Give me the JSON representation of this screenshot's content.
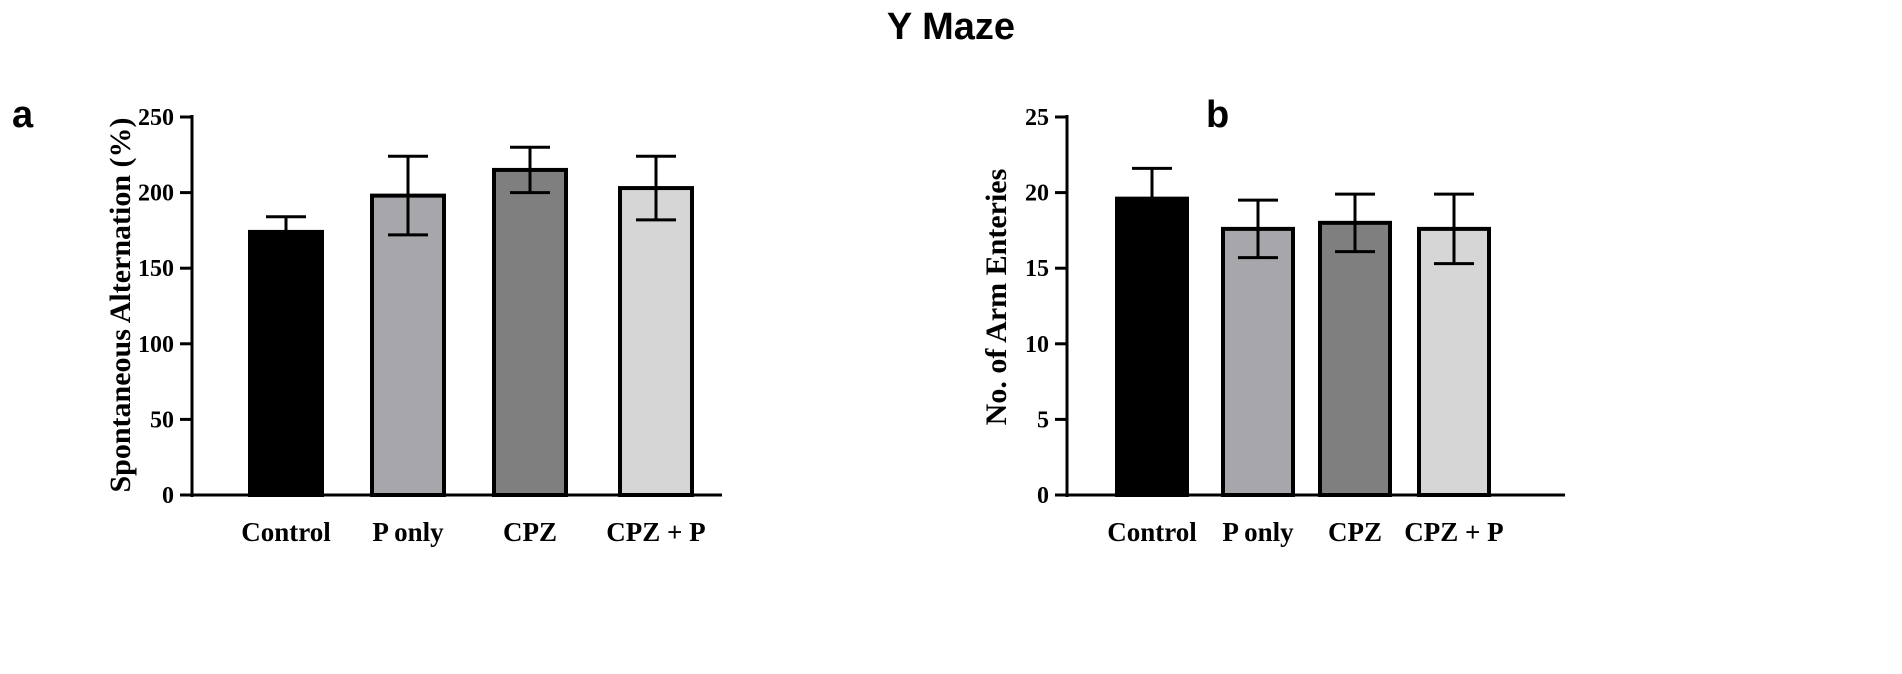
{
  "figure": {
    "title": "Y Maze"
  },
  "panels": [
    {
      "letter": "a"
    },
    {
      "letter": "b"
    }
  ],
  "chart_data": [
    {
      "type": "bar",
      "categories": [
        "Control",
        "P only",
        "CPZ",
        "CPZ + P"
      ],
      "values": [
        174,
        198,
        215,
        203
      ],
      "errors": [
        10,
        26,
        15,
        21
      ],
      "colors": [
        "#000000",
        "#a6a6ab",
        "#7f7f7f",
        "#d6d6d6"
      ],
      "ylabel": "Spontaneous Alternation  (%)",
      "ylim": [
        0,
        250
      ],
      "yticks": [
        0,
        50,
        100,
        150,
        200,
        250
      ],
      "grid": false
    },
    {
      "type": "bar",
      "categories": [
        "Control",
        "P only",
        "CPZ",
        "CPZ + P"
      ],
      "values": [
        19.6,
        17.6,
        18.0,
        17.6
      ],
      "errors": [
        2.0,
        1.9,
        1.9,
        2.3
      ],
      "colors": [
        "#000000",
        "#a6a6ab",
        "#7f7f7f",
        "#d6d6d6"
      ],
      "ylabel": "No. of Arm Enteries",
      "ylim": [
        0,
        25
      ],
      "yticks": [
        0,
        5,
        10,
        15,
        20,
        25
      ],
      "grid": false
    }
  ]
}
